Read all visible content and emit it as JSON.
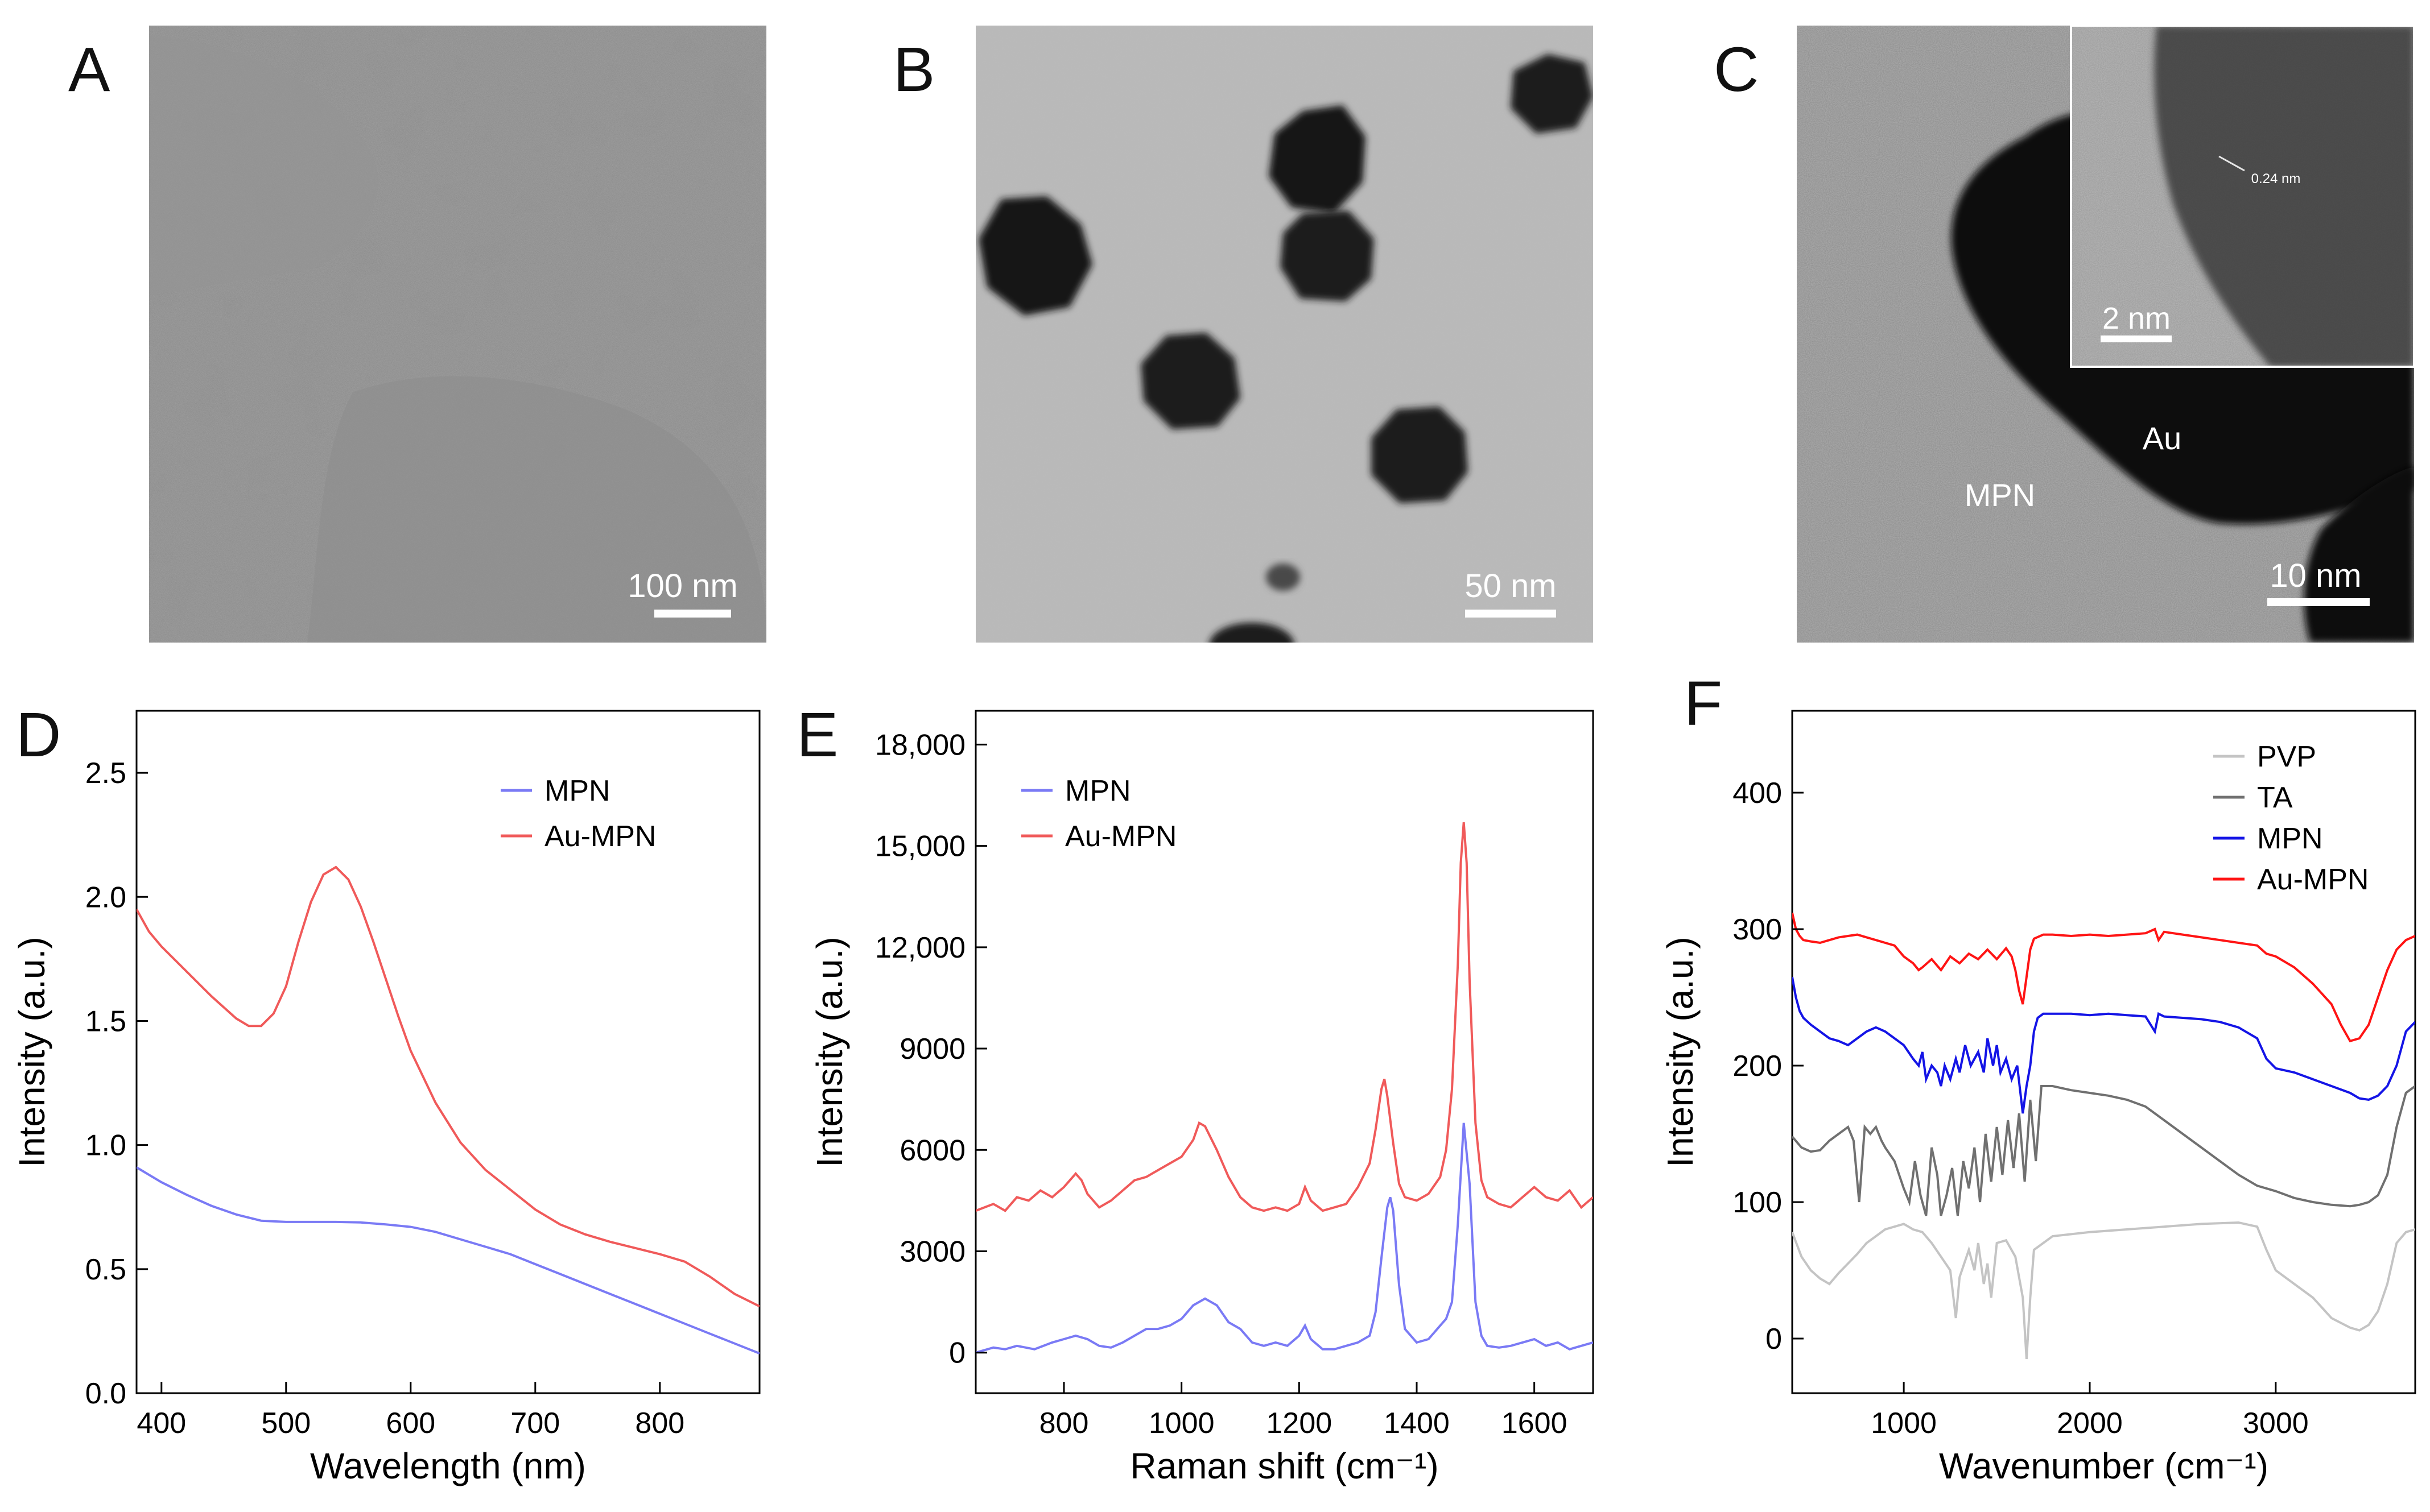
{
  "figure": {
    "images": [
      {
        "id": "A",
        "label": "A",
        "scale_bar": "100 nm",
        "inset_text": [],
        "description_icon": "tem-mpn-network-image"
      },
      {
        "id": "B",
        "label": "B",
        "scale_bar": "50 nm",
        "inset_text": [],
        "description_icon": "tem-au-mpn-particles-image"
      },
      {
        "id": "C",
        "label": "C",
        "scale_bar": "10 nm",
        "inset_text": [
          "Au",
          "MPN"
        ],
        "inset": {
          "scale_bar": "2 nm",
          "lattice_label": "0.24 nm"
        },
        "description_icon": "hrtem-au-mpn-image"
      }
    ]
  },
  "chart_data": [
    {
      "id": "D",
      "panel_label": "D",
      "type": "line",
      "xlabel": "Wavelength (nm)",
      "ylabel": "Intensity (a.u.)",
      "xlim": [
        380,
        880
      ],
      "ylim": [
        0.0,
        2.75
      ],
      "xticks": [
        400,
        500,
        600,
        700,
        800
      ],
      "xtick_labels": [
        "400",
        "500",
        "600",
        "700",
        "800"
      ],
      "yticks": [
        0.0,
        0.5,
        1.0,
        1.5,
        2.0,
        2.5
      ],
      "ytick_labels": [
        "0.0",
        "0.5",
        "1.0",
        "1.5",
        "2.0",
        "2.5"
      ],
      "legend": {
        "placement": "top-right",
        "entries": [
          "MPN",
          "Au-MPN"
        ]
      },
      "series": [
        {
          "name": "MPN",
          "color": "#7a7af5",
          "x": [
            380,
            400,
            420,
            440,
            460,
            480,
            500,
            520,
            540,
            560,
            580,
            600,
            620,
            640,
            660,
            680,
            700,
            720,
            740,
            760,
            780,
            800,
            820,
            840,
            860,
            880
          ],
          "y": [
            0.91,
            0.85,
            0.8,
            0.755,
            0.72,
            0.695,
            0.69,
            0.69,
            0.69,
            0.688,
            0.68,
            0.67,
            0.65,
            0.62,
            0.59,
            0.56,
            0.52,
            0.48,
            0.44,
            0.4,
            0.36,
            0.32,
            0.28,
            0.24,
            0.2,
            0.16
          ]
        },
        {
          "name": "Au-MPN",
          "color": "#f05a5a",
          "x": [
            380,
            390,
            400,
            420,
            440,
            460,
            470,
            480,
            490,
            500,
            510,
            520,
            530,
            540,
            550,
            560,
            570,
            580,
            590,
            600,
            620,
            640,
            660,
            680,
            700,
            720,
            740,
            760,
            780,
            800,
            820,
            840,
            860,
            880
          ],
          "y": [
            1.95,
            1.86,
            1.8,
            1.7,
            1.6,
            1.51,
            1.48,
            1.48,
            1.53,
            1.64,
            1.82,
            1.98,
            2.09,
            2.12,
            2.07,
            1.96,
            1.82,
            1.67,
            1.52,
            1.38,
            1.17,
            1.01,
            0.9,
            0.82,
            0.74,
            0.68,
            0.64,
            0.61,
            0.585,
            0.56,
            0.53,
            0.47,
            0.4,
            0.35
          ]
        }
      ]
    },
    {
      "id": "E",
      "panel_label": "E",
      "type": "line",
      "xlabel": "Raman shift (cm⁻¹)",
      "ylabel": "Intensity (a.u.)",
      "xlim": [
        650,
        1700
      ],
      "ylim": [
        -1200,
        19000
      ],
      "xticks": [
        800,
        1000,
        1200,
        1400,
        1600
      ],
      "xtick_labels": [
        "800",
        "1000",
        "1200",
        "1400",
        "1600"
      ],
      "yticks": [
        0,
        3000,
        6000,
        9000,
        12000,
        15000,
        18000
      ],
      "ytick_labels": [
        "0",
        "3000",
        "6000",
        "9000",
        "12,000",
        "15,000",
        "18,000"
      ],
      "legend": {
        "placement": "top-left",
        "entries": [
          "MPN",
          "Au-MPN"
        ]
      },
      "series": [
        {
          "name": "MPN",
          "color": "#7a7af5",
          "x": [
            650,
            680,
            700,
            720,
            750,
            780,
            800,
            820,
            840,
            860,
            880,
            900,
            920,
            940,
            960,
            980,
            1000,
            1020,
            1040,
            1060,
            1080,
            1100,
            1120,
            1140,
            1160,
            1180,
            1200,
            1210,
            1220,
            1240,
            1260,
            1280,
            1300,
            1320,
            1330,
            1340,
            1350,
            1355,
            1360,
            1370,
            1380,
            1400,
            1420,
            1440,
            1450,
            1460,
            1470,
            1480,
            1490,
            1500,
            1510,
            1520,
            1540,
            1560,
            1580,
            1600,
            1620,
            1640,
            1660,
            1680,
            1700
          ],
          "y": [
            0,
            150,
            100,
            200,
            100,
            300,
            400,
            500,
            400,
            200,
            150,
            300,
            500,
            700,
            700,
            800,
            1000,
            1400,
            1600,
            1400,
            900,
            700,
            300,
            200,
            300,
            200,
            500,
            800,
            400,
            100,
            100,
            200,
            300,
            500,
            1200,
            2800,
            4300,
            4600,
            4200,
            2000,
            700,
            300,
            400,
            800,
            1000,
            1500,
            3800,
            6800,
            5000,
            1500,
            500,
            200,
            150,
            200,
            300,
            400,
            200,
            300,
            100,
            200,
            300
          ]
        },
        {
          "name": "Au-MPN",
          "color": "#f05a5a",
          "x": [
            650,
            680,
            700,
            720,
            740,
            760,
            780,
            800,
            820,
            830,
            840,
            860,
            880,
            900,
            920,
            940,
            960,
            980,
            1000,
            1020,
            1030,
            1040,
            1060,
            1080,
            1100,
            1120,
            1140,
            1160,
            1180,
            1200,
            1210,
            1220,
            1240,
            1260,
            1280,
            1300,
            1320,
            1330,
            1340,
            1345,
            1350,
            1360,
            1370,
            1380,
            1400,
            1420,
            1440,
            1450,
            1460,
            1470,
            1475,
            1480,
            1485,
            1490,
            1500,
            1510,
            1520,
            1540,
            1560,
            1580,
            1600,
            1620,
            1640,
            1660,
            1680,
            1700
          ],
          "y": [
            4200,
            4400,
            4200,
            4600,
            4500,
            4800,
            4600,
            4900,
            5300,
            5100,
            4700,
            4300,
            4500,
            4800,
            5100,
            5200,
            5400,
            5600,
            5800,
            6300,
            6800,
            6700,
            6000,
            5200,
            4600,
            4300,
            4200,
            4300,
            4200,
            4400,
            4900,
            4500,
            4200,
            4300,
            4400,
            4900,
            5600,
            6600,
            7800,
            8100,
            7600,
            6200,
            5000,
            4600,
            4500,
            4700,
            5200,
            6000,
            7800,
            11500,
            14500,
            15700,
            14500,
            11000,
            6800,
            5100,
            4600,
            4400,
            4300,
            4600,
            4900,
            4600,
            4500,
            4800,
            4300,
            4600
          ]
        }
      ]
    },
    {
      "id": "F",
      "panel_label": "F",
      "type": "line",
      "xlabel": "Wavenumber (cm⁻¹)",
      "ylabel": "Intensity (a.u.)",
      "xlim": [
        400,
        3750
      ],
      "ylim": [
        -40,
        460
      ],
      "xticks": [
        1000,
        2000,
        3000
      ],
      "xtick_labels": [
        "1000",
        "2000",
        "3000"
      ],
      "yticks": [
        0,
        100,
        200,
        300,
        400
      ],
      "ytick_labels": [
        "0",
        "100",
        "200",
        "300",
        "400"
      ],
      "legend": {
        "placement": "top-right",
        "entries": [
          "PVP",
          "TA",
          "MPN",
          "Au-MPN"
        ]
      },
      "series": [
        {
          "name": "PVP",
          "color": "#c4c4c4",
          "x": [
            400,
            450,
            500,
            550,
            600,
            650,
            700,
            750,
            800,
            850,
            900,
            950,
            1000,
            1050,
            1100,
            1150,
            1200,
            1250,
            1280,
            1300,
            1350,
            1380,
            1400,
            1430,
            1450,
            1470,
            1500,
            1550,
            1600,
            1640,
            1660,
            1680,
            1700,
            1800,
            2000,
            2200,
            2400,
            2600,
            2800,
            2900,
            2950,
            3000,
            3050,
            3100,
            3200,
            3300,
            3400,
            3450,
            3500,
            3550,
            3600,
            3650,
            3700,
            3750
          ],
          "y": [
            78,
            60,
            50,
            44,
            40,
            48,
            55,
            62,
            70,
            75,
            80,
            82,
            84,
            80,
            78,
            70,
            60,
            50,
            15,
            45,
            65,
            50,
            70,
            40,
            55,
            30,
            70,
            72,
            60,
            30,
            -15,
            30,
            65,
            75,
            78,
            80,
            82,
            84,
            85,
            82,
            65,
            50,
            45,
            40,
            30,
            15,
            8,
            6,
            10,
            20,
            40,
            70,
            78,
            80
          ]
        },
        {
          "name": "TA",
          "color": "#707070",
          "x": [
            400,
            450,
            500,
            550,
            600,
            650,
            700,
            730,
            760,
            790,
            820,
            850,
            880,
            900,
            950,
            1000,
            1030,
            1060,
            1090,
            1120,
            1150,
            1180,
            1200,
            1230,
            1260,
            1290,
            1320,
            1350,
            1380,
            1410,
            1440,
            1470,
            1500,
            1530,
            1560,
            1590,
            1620,
            1650,
            1680,
            1710,
            1740,
            1800,
            1900,
            2000,
            2100,
            2200,
            2300,
            2400,
            2500,
            2600,
            2700,
            2800,
            2900,
            3000,
            3100,
            3200,
            3300,
            3400,
            3450,
            3500,
            3550,
            3600,
            3650,
            3700,
            3750
          ],
          "y": [
            148,
            140,
            137,
            138,
            145,
            150,
            155,
            145,
            100,
            155,
            150,
            155,
            145,
            140,
            130,
            110,
            100,
            130,
            105,
            90,
            140,
            120,
            90,
            105,
            125,
            90,
            130,
            110,
            140,
            100,
            150,
            115,
            155,
            120,
            160,
            125,
            165,
            115,
            175,
            130,
            185,
            185,
            182,
            180,
            178,
            175,
            170,
            160,
            150,
            140,
            130,
            120,
            112,
            108,
            103,
            100,
            98,
            97,
            98,
            100,
            105,
            120,
            155,
            180,
            185
          ]
        },
        {
          "name": "MPN",
          "color": "#1414e6",
          "x": [
            400,
            420,
            440,
            460,
            500,
            550,
            600,
            650,
            700,
            750,
            800,
            850,
            900,
            950,
            1000,
            1050,
            1080,
            1100,
            1120,
            1150,
            1180,
            1200,
            1220,
            1250,
            1280,
            1300,
            1330,
            1360,
            1400,
            1430,
            1450,
            1480,
            1500,
            1520,
            1550,
            1580,
            1610,
            1640,
            1660,
            1680,
            1700,
            1720,
            1750,
            1800,
            1900,
            2000,
            2100,
            2200,
            2300,
            2350,
            2370,
            2400,
            2500,
            2600,
            2700,
            2800,
            2900,
            2950,
            3000,
            3100,
            3200,
            3300,
            3400,
            3450,
            3500,
            3550,
            3600,
            3650,
            3700,
            3750
          ],
          "y": [
            265,
            250,
            240,
            235,
            230,
            225,
            220,
            218,
            215,
            220,
            225,
            228,
            225,
            220,
            215,
            205,
            200,
            210,
            190,
            200,
            195,
            185,
            200,
            190,
            205,
            195,
            215,
            200,
            210,
            195,
            220,
            200,
            215,
            195,
            205,
            190,
            200,
            165,
            185,
            200,
            225,
            235,
            238,
            238,
            238,
            237,
            238,
            237,
            236,
            225,
            238,
            236,
            235,
            234,
            232,
            228,
            220,
            205,
            198,
            195,
            190,
            185,
            180,
            176,
            175,
            178,
            185,
            200,
            225,
            232
          ]
        },
        {
          "name": "Au-MPN",
          "color": "#ff1414",
          "x": [
            400,
            420,
            440,
            460,
            500,
            550,
            600,
            650,
            700,
            750,
            800,
            850,
            900,
            950,
            1000,
            1050,
            1080,
            1100,
            1150,
            1200,
            1250,
            1300,
            1350,
            1400,
            1450,
            1500,
            1550,
            1580,
            1600,
            1620,
            1640,
            1660,
            1680,
            1700,
            1750,
            1800,
            1900,
            2000,
            2100,
            2200,
            2300,
            2350,
            2370,
            2400,
            2500,
            2600,
            2700,
            2800,
            2900,
            2950,
            3000,
            3100,
            3200,
            3300,
            3350,
            3400,
            3450,
            3500,
            3550,
            3600,
            3650,
            3700,
            3750
          ],
          "y": [
            312,
            300,
            295,
            292,
            291,
            290,
            292,
            294,
            295,
            296,
            294,
            292,
            290,
            288,
            280,
            275,
            270,
            272,
            278,
            270,
            280,
            275,
            282,
            278,
            285,
            278,
            286,
            280,
            270,
            255,
            245,
            265,
            285,
            293,
            296,
            296,
            295,
            296,
            295,
            296,
            297,
            300,
            292,
            298,
            296,
            294,
            292,
            290,
            288,
            282,
            280,
            272,
            260,
            245,
            230,
            218,
            220,
            230,
            250,
            270,
            285,
            292,
            295
          ]
        }
      ]
    }
  ]
}
